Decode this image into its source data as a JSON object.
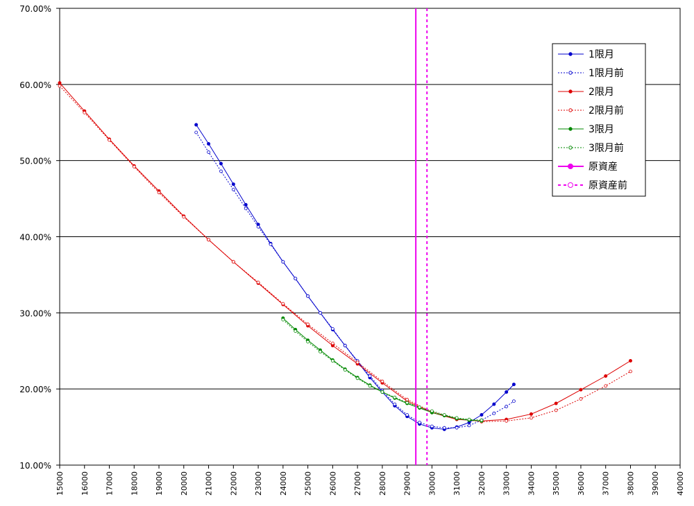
{
  "chart_data": {
    "type": "line",
    "title": "",
    "xlabel": "",
    "ylabel": "",
    "xlim": [
      15000,
      40000
    ],
    "ylim": [
      0.1,
      0.7
    ],
    "x_ticks": [
      "15000",
      "16000",
      "17000",
      "18000",
      "19000",
      "20000",
      "21000",
      "22000",
      "23000",
      "24000",
      "25000",
      "26000",
      "27000",
      "28000",
      "29000",
      "30000",
      "31000",
      "32000",
      "33000",
      "34000",
      "35000",
      "36000",
      "37000",
      "38000",
      "39000",
      "40000"
    ],
    "y_ticks": [
      "10.00%",
      "20.00%",
      "30.00%",
      "40.00%",
      "50.00%",
      "60.00%",
      "70.00%"
    ],
    "grid": "horizontal",
    "legend_position": "top-right",
    "series": [
      {
        "name": "1限月",
        "color": "#0000cc",
        "line": "solid",
        "marker": "filled",
        "x": [
          20500,
          21000,
          21500,
          22000,
          22500,
          23000,
          23500,
          24000,
          24500,
          25000,
          25500,
          26000,
          26500,
          27000,
          27500,
          28000,
          28500,
          29000,
          29500,
          30000,
          30500,
          31000,
          31500,
          32000,
          32500,
          33000,
          33300
        ],
        "y": [
          0.547,
          0.522,
          0.496,
          0.469,
          0.442,
          0.416,
          0.391,
          0.367,
          0.345,
          0.322,
          0.3,
          0.278,
          0.257,
          0.236,
          0.215,
          0.196,
          0.178,
          0.164,
          0.154,
          0.149,
          0.147,
          0.15,
          0.156,
          0.166,
          0.18,
          0.196,
          0.206
        ]
      },
      {
        "name": "1限月前",
        "color": "#0000cc",
        "line": "dotted",
        "marker": "open",
        "x": [
          20500,
          21000,
          21500,
          22000,
          22500,
          23000,
          23500,
          24000,
          24500,
          25000,
          25500,
          26000,
          26500,
          27000,
          27500,
          28000,
          28500,
          29000,
          29500,
          30000,
          30500,
          31000,
          31500,
          32000,
          32500,
          33000,
          33300
        ],
        "y": [
          0.537,
          0.511,
          0.486,
          0.462,
          0.437,
          0.413,
          0.39,
          0.367,
          0.345,
          0.322,
          0.3,
          0.279,
          0.257,
          0.237,
          0.217,
          0.198,
          0.18,
          0.166,
          0.156,
          0.151,
          0.149,
          0.149,
          0.152,
          0.159,
          0.168,
          0.177,
          0.184
        ]
      },
      {
        "name": "2限月",
        "color": "#dd0000",
        "line": "solid",
        "marker": "filled",
        "x": [
          15000,
          16000,
          17000,
          18000,
          19000,
          20000,
          21000,
          22000,
          23000,
          24000,
          25000,
          26000,
          27000,
          28000,
          29000,
          30000,
          31000,
          32000,
          33000,
          34000,
          35000,
          36000,
          37000,
          38000
        ],
        "y": [
          0.602,
          0.565,
          0.528,
          0.493,
          0.46,
          0.427,
          0.396,
          0.367,
          0.339,
          0.311,
          0.283,
          0.257,
          0.233,
          0.208,
          0.184,
          0.169,
          0.16,
          0.158,
          0.16,
          0.167,
          0.181,
          0.199,
          0.217,
          0.237
        ]
      },
      {
        "name": "2限月前",
        "color": "#dd0000",
        "line": "dotted",
        "marker": "open",
        "x": [
          15000,
          16000,
          17000,
          18000,
          19000,
          20000,
          21000,
          22000,
          23000,
          24000,
          25000,
          26000,
          27000,
          28000,
          29000,
          30000,
          31000,
          32000,
          33000,
          34000,
          35000,
          36000,
          37000,
          38000
        ],
        "y": [
          0.598,
          0.563,
          0.527,
          0.492,
          0.458,
          0.426,
          0.396,
          0.367,
          0.34,
          0.312,
          0.285,
          0.26,
          0.235,
          0.21,
          0.186,
          0.17,
          0.161,
          0.157,
          0.158,
          0.162,
          0.172,
          0.187,
          0.204,
          0.223
        ]
      },
      {
        "name": "3限月",
        "color": "#008800",
        "line": "solid",
        "marker": "filled",
        "x": [
          24000,
          24500,
          25000,
          25500,
          26000,
          26500,
          27000,
          27500,
          28000,
          28500,
          29000,
          29500,
          30000,
          30500,
          31000,
          31500,
          32000
        ],
        "y": [
          0.293,
          0.278,
          0.264,
          0.251,
          0.238,
          0.226,
          0.215,
          0.205,
          0.196,
          0.188,
          0.181,
          0.175,
          0.169,
          0.165,
          0.161,
          0.159,
          0.158
        ]
      },
      {
        "name": "3限月前",
        "color": "#008800",
        "line": "dotted",
        "marker": "open",
        "x": [
          24000,
          24500,
          25000,
          25500,
          26000,
          26500,
          27000,
          27500,
          28000,
          28500,
          29000,
          29500,
          30000,
          30500,
          31000,
          31500,
          32000
        ],
        "y": [
          0.291,
          0.276,
          0.262,
          0.249,
          0.237,
          0.225,
          0.214,
          0.204,
          0.196,
          0.189,
          0.182,
          0.176,
          0.171,
          0.166,
          0.162,
          0.16,
          0.159
        ]
      },
      {
        "name": "原資産",
        "color": "#ee00ee",
        "line": "solid",
        "marker": "filled",
        "vertical_x": 29350
      },
      {
        "name": "原資産前",
        "color": "#ee00ee",
        "line": "dashed",
        "marker": "open",
        "vertical_x": 29800
      }
    ]
  }
}
